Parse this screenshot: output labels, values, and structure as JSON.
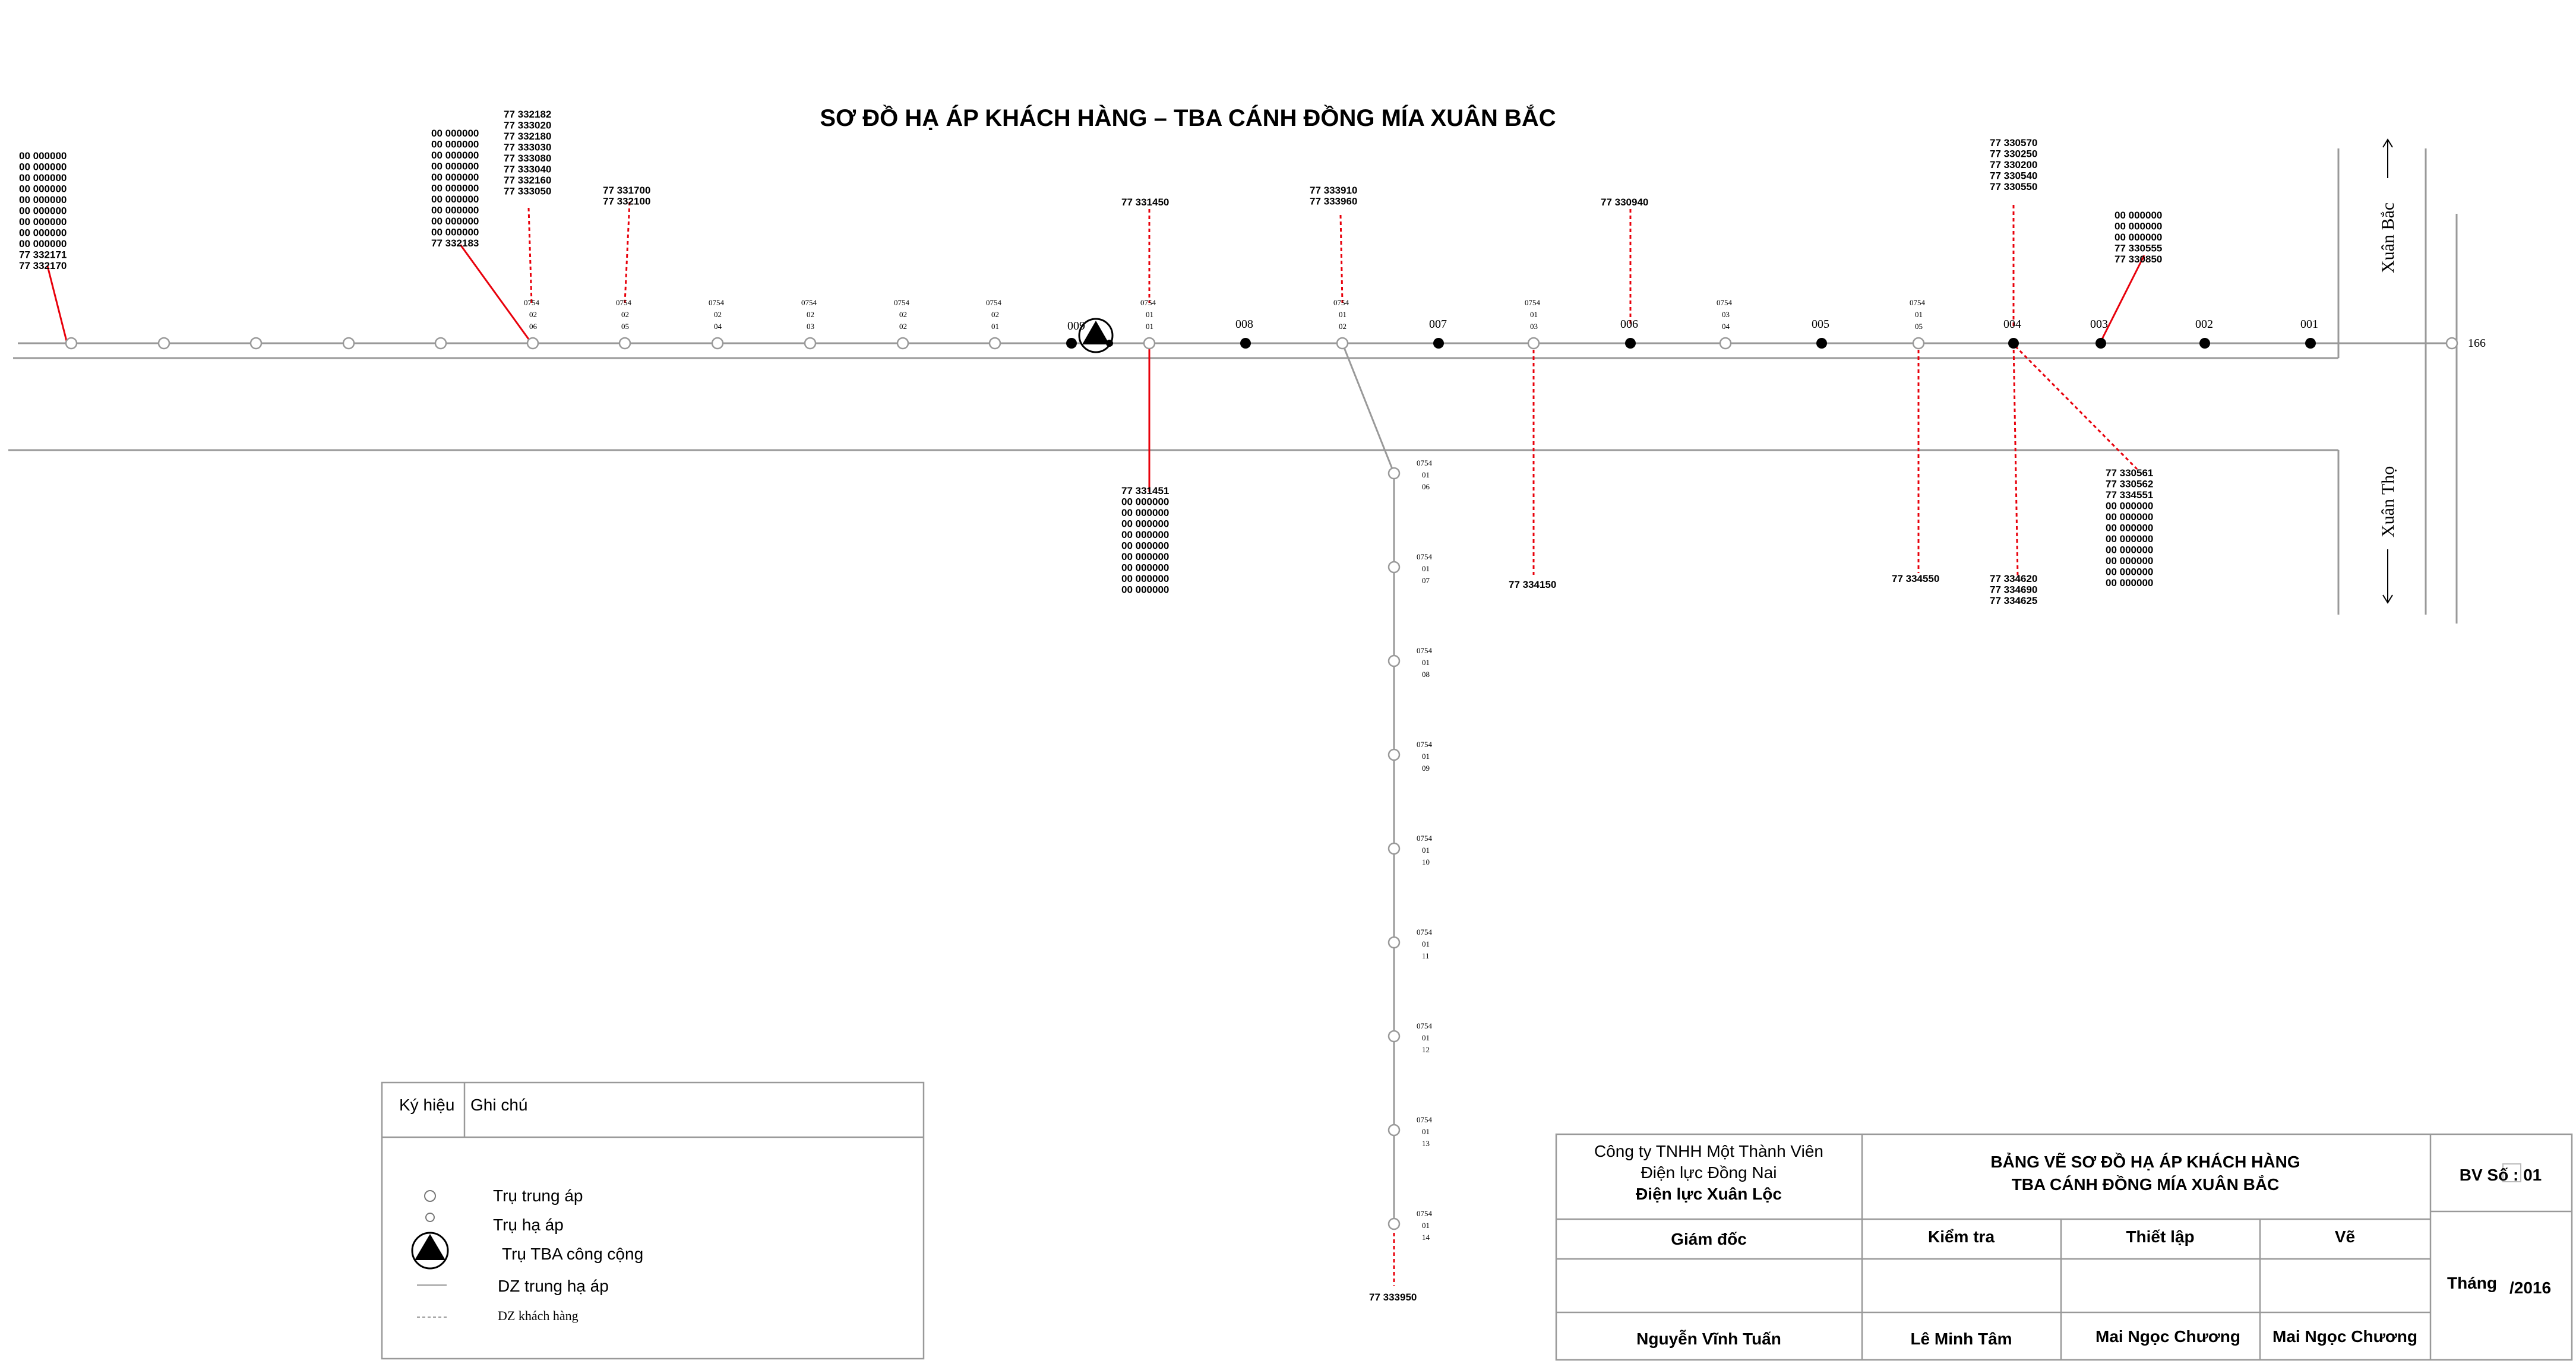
{
  "title": "SƠ ĐỒ HẠ ÁP KHÁCH HÀNG – TBA CÁNH ĐỒNG MÍA XUÂN BẮC",
  "directions": {
    "xuan_bac": "Xuân Bắc",
    "xuan_tho": "Xuân Thọ",
    "feeder": "166"
  },
  "numbered_poles": [
    {
      "label": "009"
    },
    {
      "label": "008"
    },
    {
      "label": "007"
    },
    {
      "label": "006"
    },
    {
      "label": "005"
    },
    {
      "label": "004"
    },
    {
      "label": "003"
    },
    {
      "label": "002"
    },
    {
      "label": "001"
    }
  ],
  "pole_codes": [
    [
      "0754",
      "02",
      "06"
    ],
    [
      "0754",
      "02",
      "05"
    ],
    [
      "0754",
      "02",
      "04"
    ],
    [
      "0754",
      "02",
      "03"
    ],
    [
      "0754",
      "02",
      "02"
    ],
    [
      "0754",
      "02",
      "01"
    ],
    [
      "0754",
      "01",
      "01"
    ],
    [
      "0754",
      "01",
      "02"
    ],
    [
      "0754",
      "01",
      "03"
    ],
    [
      "0754",
      "03",
      "04"
    ],
    [
      "0754",
      "01",
      "05"
    ],
    [
      "0754",
      "01",
      "06"
    ],
    [
      "0754",
      "01",
      "07"
    ],
    [
      "0754",
      "01",
      "08"
    ],
    [
      "0754",
      "01",
      "09"
    ],
    [
      "0754",
      "01",
      "10"
    ],
    [
      "0754",
      "01",
      "11"
    ],
    [
      "0754",
      "01",
      "12"
    ],
    [
      "0754",
      "01",
      "13"
    ],
    [
      "0754",
      "01",
      "14"
    ]
  ],
  "customer_groups": [
    {
      "lines": [
        "00  000000",
        "00  000000",
        "00  000000",
        "00  000000",
        "00  000000",
        "00  000000",
        "00  000000",
        "00  000000",
        "00  000000",
        "77  332171",
        "77  332170"
      ]
    },
    {
      "lines": [
        "00  000000",
        "00  000000",
        "00  000000",
        "00  000000",
        "00  000000",
        "00  000000",
        "00  000000",
        "00  000000",
        "00  000000",
        "00  000000",
        "77  332183"
      ]
    },
    {
      "lines": [
        "77  332182",
        "77  333020",
        "77  332180",
        "77  333030",
        "77  333080",
        "77  333040",
        "77  332160",
        "77  333050"
      ]
    },
    {
      "lines": [
        "77  331700",
        "77  332100"
      ]
    },
    {
      "lines": [
        "77  331450"
      ]
    },
    {
      "lines": [
        "77  333910",
        "77  333960"
      ]
    },
    {
      "lines": [
        "77  330940"
      ]
    },
    {
      "lines": [
        "77  330570",
        "77  330250",
        "77  330200",
        "77  330540",
        "77  330550"
      ]
    },
    {
      "lines": [
        "00  000000",
        "00  000000",
        "00  000000",
        "77  330555",
        "77  330850"
      ]
    },
    {
      "lines": [
        "77  331451",
        "00  000000",
        "00  000000",
        "00  000000",
        "00  000000",
        "00  000000",
        "00  000000",
        "00  000000",
        "00  000000",
        "00  000000"
      ]
    },
    {
      "lines": [
        "77  334150"
      ]
    },
    {
      "lines": [
        "77  334550"
      ]
    },
    {
      "lines": [
        "77  334620",
        "77  334690",
        "77  334625"
      ]
    },
    {
      "lines": [
        "77  330561",
        "77  330562",
        "77  334551",
        "00  000000",
        "00  000000",
        "00  000000",
        "00  000000",
        "00  000000",
        "00  000000",
        "00  000000",
        "00  000000"
      ]
    },
    {
      "lines": [
        "77  333950"
      ]
    }
  ],
  "legend": {
    "col_symbol": "Ký hiệu",
    "col_note": "Ghi chú",
    "items": [
      {
        "label": "Trụ trung áp",
        "icon": "circle-icon"
      },
      {
        "label": "Trụ hạ áp",
        "icon": "circle-small-icon"
      },
      {
        "label": "Trụ TBA  công cộng",
        "icon": "transformer-icon"
      },
      {
        "label": "DZ trung hạ áp",
        "icon": "solid-line-icon"
      },
      {
        "label": "DZ khách hàng",
        "icon": "dashed-line-icon"
      }
    ]
  },
  "title_block": {
    "company_line1": "Công ty TNHH Một Thành Viên",
    "company_line2": "Điện lực Đồng Nai",
    "company_line3": "Điện lực Xuân Lộc",
    "drawing_title1": "BẢNG VẼ SƠ ĐỒ HẠ ÁP KHÁCH HÀNG",
    "drawing_title2": "TBA CÁNH ĐỒNG MÍA XUÂN BẮC",
    "sheet_no": "BV Số : 01",
    "director_label": "Giám đốc",
    "check_label": "Kiểm tra",
    "setup_label": "Thiết lập",
    "draw_label": "Vẽ",
    "month_label": "Tháng",
    "year_label": "/2016",
    "director_name": "Nguyễn Vĩnh Tuấn",
    "check_name": "Lê Minh Tâm",
    "setup_name": "Mai Ngọc Chương",
    "draw_name": "Mai Ngọc Chương"
  },
  "colors": {
    "customer_line": "#e8000b",
    "network_line": "#999999",
    "ink": "#000000"
  }
}
